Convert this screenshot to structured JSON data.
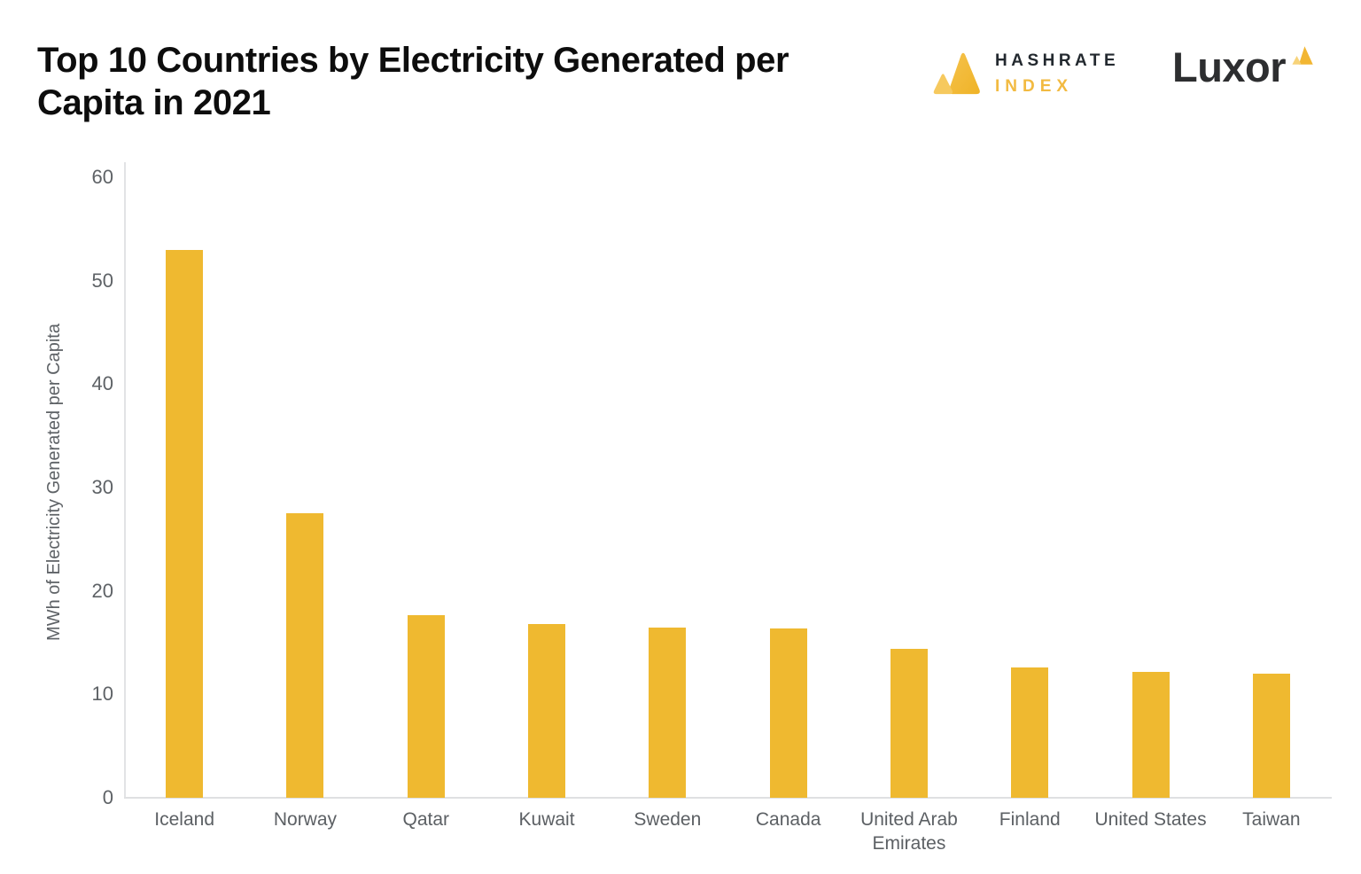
{
  "title": "Top 10 Countries by Electricity Generated per Capita in 2021",
  "logos": {
    "hashrate_index": {
      "line1": "HASHRATE",
      "line2": "INDEX"
    },
    "luxor": {
      "text": "Luxor"
    }
  },
  "colors": {
    "bar": "#efb930",
    "accent_yellow": "#f2ba41",
    "hashrate_text_dark": "#23292f",
    "luxor_text_dark": "#2d2e30",
    "axis_line": "#e0e1e3",
    "tick_text": "#5e6266",
    "title_text": "#0d0d0d",
    "background": "#ffffff"
  },
  "chart_data": {
    "type": "bar",
    "title": "Top 10 Countries by Electricity Generated per Capita in 2021",
    "categories": [
      "Iceland",
      "Norway",
      "Qatar",
      "Kuwait",
      "Sweden",
      "Canada",
      "United Arab Emirates",
      "Finland",
      "United States",
      "Taiwan"
    ],
    "values": [
      53,
      27.5,
      17.7,
      16.8,
      16.5,
      16.4,
      14.4,
      12.6,
      12.2,
      12.0
    ],
    "xlabel": "",
    "ylabel": "MWh of Electricity Generated per Capita",
    "ylim": [
      0,
      60
    ],
    "yticks": [
      0,
      10,
      20,
      30,
      40,
      50,
      60
    ],
    "grid": false,
    "legend_position": "none",
    "bar_color": "#efb930"
  }
}
